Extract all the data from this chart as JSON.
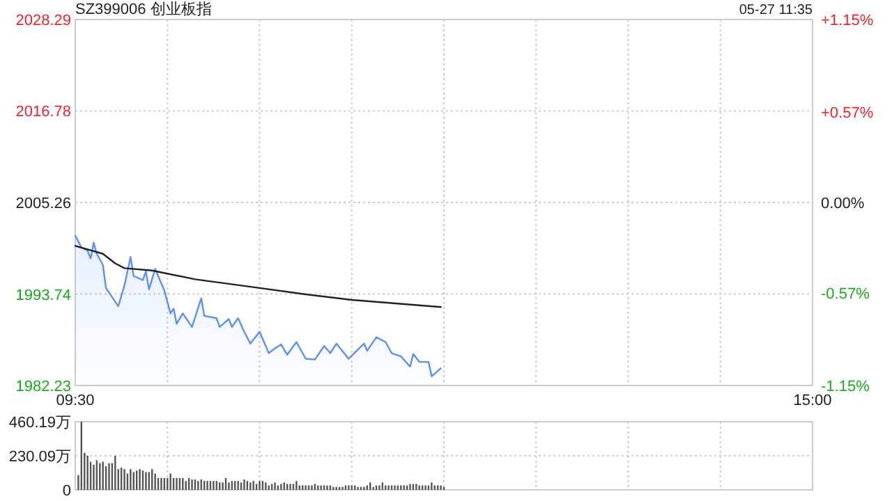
{
  "chart_data": [
    {
      "type": "line",
      "title": "SZ399006 创业板指",
      "annotations": [
        "05-27 11:35"
      ],
      "grid": true,
      "categories": [
        "09:30",
        null,
        null,
        null,
        null,
        null,
        null,
        null,
        null,
        null,
        null,
        null,
        null,
        null,
        null,
        null,
        null,
        null,
        null,
        null,
        null,
        null,
        null,
        null,
        null,
        null,
        null,
        null,
        null,
        null,
        null,
        null,
        null,
        null,
        null,
        null,
        null,
        null,
        null,
        null,
        null,
        null,
        null,
        null,
        null,
        null,
        null,
        null,
        null,
        null,
        null,
        null,
        null,
        null,
        null,
        null,
        null,
        null,
        null,
        null,
        null,
        null,
        null,
        null,
        null,
        null,
        null,
        null,
        null,
        null,
        null,
        null,
        null,
        null,
        null,
        null,
        null,
        null,
        null,
        null,
        null,
        null,
        null,
        null,
        null,
        null,
        null,
        null,
        null,
        null,
        null,
        null,
        null,
        null,
        null,
        null,
        null,
        null,
        null,
        null,
        null,
        null,
        null,
        null,
        null,
        null,
        null,
        null,
        null,
        null,
        null,
        null,
        null,
        null,
        null,
        null,
        null,
        null,
        null,
        null,
        null,
        null,
        null,
        null,
        null,
        null,
        null,
        null,
        null,
        null,
        null,
        null,
        null,
        null,
        null,
        null,
        null,
        null,
        null,
        null,
        null,
        null,
        null,
        null,
        null,
        null,
        null,
        null,
        null,
        null,
        null,
        null,
        null,
        null,
        null,
        null,
        null,
        null,
        null,
        null,
        null,
        null,
        null,
        null,
        null,
        null,
        null,
        null,
        null,
        null,
        null,
        null,
        null,
        null,
        null,
        null,
        null,
        null,
        null,
        null,
        null,
        null,
        null,
        null,
        null,
        null,
        null,
        null,
        null,
        null,
        null,
        null,
        null,
        null,
        null,
        null,
        null,
        null,
        null,
        null,
        null,
        null,
        null,
        null,
        null,
        null,
        null,
        null,
        null,
        null,
        null,
        null,
        null,
        null,
        null,
        null,
        null,
        null,
        null,
        null,
        null,
        null,
        null,
        null,
        null,
        null,
        null,
        null,
        null,
        null,
        null,
        null,
        null,
        null,
        null,
        null,
        null,
        null,
        null,
        null,
        "15:00"
      ],
      "ylim": [
        1982.23,
        2028.29
      ],
      "yticks": [
        1982.23,
        1993.74,
        2005.26,
        2016.78,
        2028.29
      ],
      "y2lim": [
        -1.15,
        1.15
      ],
      "y2ticks": [
        {
          "value": -1.15,
          "label": "-1.15%"
        },
        {
          "value": -0.57,
          "label": "-0.57%"
        },
        {
          "value": 0,
          "label": "0.00%"
        },
        {
          "value": 0.57,
          "label": "+0.57%"
        },
        {
          "value": 1.15,
          "label": "+1.15%"
        }
      ],
      "series": [
        {
          "type": "area",
          "color": "#5b8ff9",
          "values": [
            2001.1,
            null,
            1999.6,
            null,
            1999.2,
            1998.2,
            2000.2,
            1998.8,
            null,
            1997.4,
            1994.5,
            null,
            null,
            null,
            1992.2,
            null,
            1994.8,
            null,
            1998.4,
            1996.0,
            null,
            null,
            1995.5,
            1996.6,
            1994.3,
            null,
            1996.9,
            null,
            null,
            1994.2,
            null,
            1991.3,
            1991.9,
            1990.0,
            null,
            1991.3,
            null,
            null,
            1989.6,
            null,
            null,
            1993.2,
            1991.0,
            null,
            null,
            null,
            1990.7,
            1989.6,
            null,
            null,
            1990.6,
            1989.6,
            null,
            1990.7,
            null,
            1989.0,
            null,
            1987.5,
            null,
            null,
            1989.0,
            null,
            null,
            1986.3,
            null,
            1986.9,
            null,
            1987.4,
            null,
            1986.1,
            null,
            null,
            1987.7,
            null,
            null,
            1985.6,
            null,
            null,
            1985.5,
            null,
            null,
            1987.2,
            null,
            1986.3,
            null,
            1987.5,
            null,
            null,
            null,
            1985.6,
            null,
            null,
            null,
            null,
            1987.5,
            1986.6,
            null,
            null,
            1988.3,
            null,
            null,
            1987.7,
            null,
            1986.3,
            null,
            null,
            1985.9,
            null,
            null,
            1984.6,
            1986.2,
            null,
            1985.2,
            null,
            null,
            1985.2,
            1983.4,
            1983.7,
            null,
            1984.4,
            null,
            null,
            null,
            null,
            null,
            null,
            null,
            null,
            null,
            null,
            null,
            null,
            null,
            null,
            null,
            null,
            null,
            null,
            null,
            null,
            null,
            null,
            null,
            null,
            null,
            null,
            null,
            null,
            null,
            null,
            null,
            null,
            null,
            null,
            null,
            null,
            null,
            null,
            null,
            null,
            null,
            null,
            null,
            null,
            null,
            null,
            null,
            null,
            null,
            null,
            null,
            null,
            null,
            null,
            null,
            null,
            null,
            null,
            null,
            null,
            null,
            null,
            null,
            null,
            null,
            null,
            null,
            null,
            null,
            null,
            null,
            null,
            null,
            null,
            null,
            null,
            null,
            null,
            null,
            null,
            null,
            null,
            null,
            null,
            null,
            null,
            null,
            null,
            null,
            null,
            null,
            null,
            null,
            null,
            null,
            null,
            null,
            null,
            null,
            null,
            null,
            null,
            null,
            null,
            null,
            null,
            null,
            null,
            null,
            null,
            null,
            null,
            null,
            null,
            null,
            null,
            null,
            null,
            null,
            null,
            null
          ]
        },
        {
          "type": "line",
          "color": "#222222",
          "values": [
            1999.8,
            null,
            null,
            null,
            null,
            null,
            null,
            null,
            null,
            1998.8,
            null,
            null,
            null,
            1997.6,
            null,
            null,
            1997.0,
            null,
            null,
            null,
            null,
            null,
            null,
            null,
            null,
            1996.7,
            null,
            null,
            null,
            null,
            null,
            null,
            null,
            null,
            null,
            null,
            null,
            null,
            null,
            1995.6,
            null,
            null,
            null,
            null,
            null,
            null,
            null,
            null,
            null,
            null,
            null,
            null,
            null,
            null,
            null,
            null,
            null,
            null,
            null,
            null,
            1994.5,
            null,
            null,
            null,
            null,
            null,
            null,
            null,
            null,
            null,
            null,
            null,
            null,
            null,
            null,
            1993.7,
            null,
            null,
            null,
            null,
            null,
            null,
            null,
            null,
            null,
            null,
            null,
            null,
            null,
            null,
            1993.0,
            null,
            null,
            null,
            null,
            null,
            null,
            null,
            null,
            null,
            null,
            null,
            null,
            null,
            null,
            null,
            null,
            null,
            null,
            null,
            null,
            null,
            null,
            null,
            null,
            null,
            null,
            null,
            null,
            1992.1,
            null,
            null,
            null,
            null,
            null,
            null,
            null,
            null,
            null,
            null,
            null,
            null,
            null,
            null,
            null,
            null,
            null,
            null,
            null,
            null,
            null,
            null,
            null,
            null,
            null,
            null,
            null,
            null,
            null,
            null,
            null,
            null,
            null,
            null,
            null,
            null,
            null,
            null,
            null,
            null,
            null,
            null,
            null,
            null,
            null,
            null,
            null,
            null,
            null,
            null,
            null,
            null,
            null,
            null,
            null,
            null,
            null,
            null,
            null,
            null,
            null,
            null,
            null,
            null,
            null,
            null,
            null,
            null,
            null,
            null,
            null,
            null,
            null,
            null,
            null,
            null,
            null,
            null,
            null,
            null,
            null,
            null,
            null,
            null,
            null,
            null,
            null,
            null,
            null,
            null,
            null,
            null,
            null,
            null,
            null,
            null,
            null,
            null,
            null,
            null,
            null,
            null,
            null,
            null,
            null,
            null,
            null,
            null,
            null,
            null,
            null,
            null,
            null,
            null,
            null,
            null,
            null,
            null,
            null,
            null,
            null
          ]
        }
      ]
    },
    {
      "type": "bar",
      "grid": true,
      "tick_labels": "y",
      "categories": [
        null,
        null,
        null,
        null,
        null,
        null,
        null,
        null,
        null,
        null,
        null,
        null,
        null,
        null,
        null,
        null,
        null,
        null,
        null,
        null,
        null,
        null,
        null,
        null,
        null,
        null,
        null,
        null,
        null,
        null,
        null,
        null,
        null,
        null,
        null,
        null,
        null,
        null,
        null,
        null,
        null,
        null,
        null,
        null,
        null,
        null,
        null,
        null,
        null,
        null,
        null,
        null,
        null,
        null,
        null,
        null,
        null,
        null,
        null,
        null,
        null,
        null,
        null,
        null,
        null,
        null,
        null,
        null,
        null,
        null,
        null,
        null,
        null,
        null,
        null,
        null,
        null,
        null,
        null,
        null,
        null,
        null,
        null,
        null,
        null,
        null,
        null,
        null,
        null,
        null,
        null,
        null,
        null,
        null,
        null,
        null,
        null,
        null,
        null,
        null,
        null,
        null,
        null,
        null,
        null,
        null,
        null,
        null,
        null,
        null,
        null,
        null,
        null,
        null,
        null,
        null,
        null,
        null,
        null,
        null,
        null,
        null,
        null,
        null,
        null,
        null,
        null,
        null,
        null,
        null,
        null,
        null,
        null,
        null,
        null,
        null,
        null,
        null,
        null,
        null,
        null,
        null,
        null,
        null,
        null,
        null,
        null,
        null,
        null,
        null,
        null,
        null,
        null,
        null,
        null,
        null,
        null,
        null,
        null,
        null,
        null,
        null,
        null,
        null,
        null,
        null,
        null,
        null,
        null,
        null,
        null,
        null,
        null,
        null,
        null,
        null,
        null,
        null,
        null,
        null,
        null,
        null,
        null,
        null,
        null,
        null,
        null,
        null,
        null,
        null,
        null,
        null,
        null,
        null,
        null,
        null,
        null,
        null,
        null,
        null,
        null,
        null,
        null,
        null,
        null,
        null,
        null,
        null,
        null,
        null,
        null,
        null,
        null,
        null,
        null,
        null,
        null,
        null,
        null,
        null,
        null,
        null,
        null,
        null,
        null,
        null,
        null,
        null,
        null,
        null,
        null,
        null,
        null,
        null,
        null,
        null,
        null,
        null,
        null,
        null,
        null
      ],
      "ylim": [
        0,
        460.19
      ],
      "yticks": [
        {
          "value": 0,
          "label": "0"
        },
        {
          "value": 230.09,
          "label": "230.09万"
        },
        {
          "value": 460.19,
          "label": "460.19万"
        }
      ],
      "series": [
        {
          "color": "#555555",
          "values": [
            null,
            100,
            460,
            250,
            230,
            190,
            170,
            200,
            180,
            190,
            160,
            180,
            180,
            230,
            140,
            150,
            140,
            110,
            140,
            120,
            130,
            140,
            130,
            120,
            120,
            140,
            110,
            80,
            80,
            80,
            80,
            110,
            80,
            80,
            80,
            80,
            60,
            80,
            70,
            70,
            60,
            70,
            60,
            60,
            60,
            60,
            60,
            50,
            50,
            80,
            50,
            60,
            60,
            60,
            50,
            70,
            60,
            50,
            60,
            40,
            60,
            60,
            50,
            30,
            40,
            50,
            30,
            40,
            50,
            40,
            40,
            40,
            60,
            30,
            30,
            30,
            30,
            30,
            40,
            30,
            30,
            30,
            30,
            30,
            20,
            20,
            20,
            20,
            30,
            30,
            30,
            30,
            20,
            20,
            20,
            30,
            50,
            20,
            30,
            30,
            50,
            30,
            30,
            30,
            30,
            30,
            30,
            30,
            30,
            40,
            40,
            40,
            30,
            30,
            30,
            30,
            50,
            30,
            30,
            30,
            20,
            null,
            null,
            null,
            null,
            null,
            null,
            null,
            null,
            null,
            null,
            null,
            null,
            null,
            null,
            null,
            null,
            null,
            null,
            null,
            null,
            null,
            null,
            null,
            null,
            null,
            null,
            null,
            null,
            null,
            null,
            null,
            null,
            null,
            null,
            null,
            null,
            null,
            null,
            null,
            null,
            null,
            null,
            null,
            null,
            null,
            null,
            null,
            null,
            null,
            null,
            null,
            null,
            null,
            null,
            null,
            null,
            null,
            null,
            null,
            null,
            null,
            null,
            null,
            null,
            null,
            null,
            null,
            null,
            null,
            null,
            null,
            null,
            null,
            null,
            null,
            null,
            null,
            null,
            null,
            null,
            null,
            null,
            null,
            null,
            null,
            null,
            null,
            null,
            null,
            null,
            null,
            null,
            null,
            null,
            null,
            null,
            null,
            null,
            null,
            null,
            null,
            null,
            null,
            null,
            null,
            null,
            null,
            null,
            null,
            null,
            null,
            null,
            null,
            null,
            null,
            null,
            null,
            null,
            null,
            null
          ]
        }
      ]
    }
  ]
}
